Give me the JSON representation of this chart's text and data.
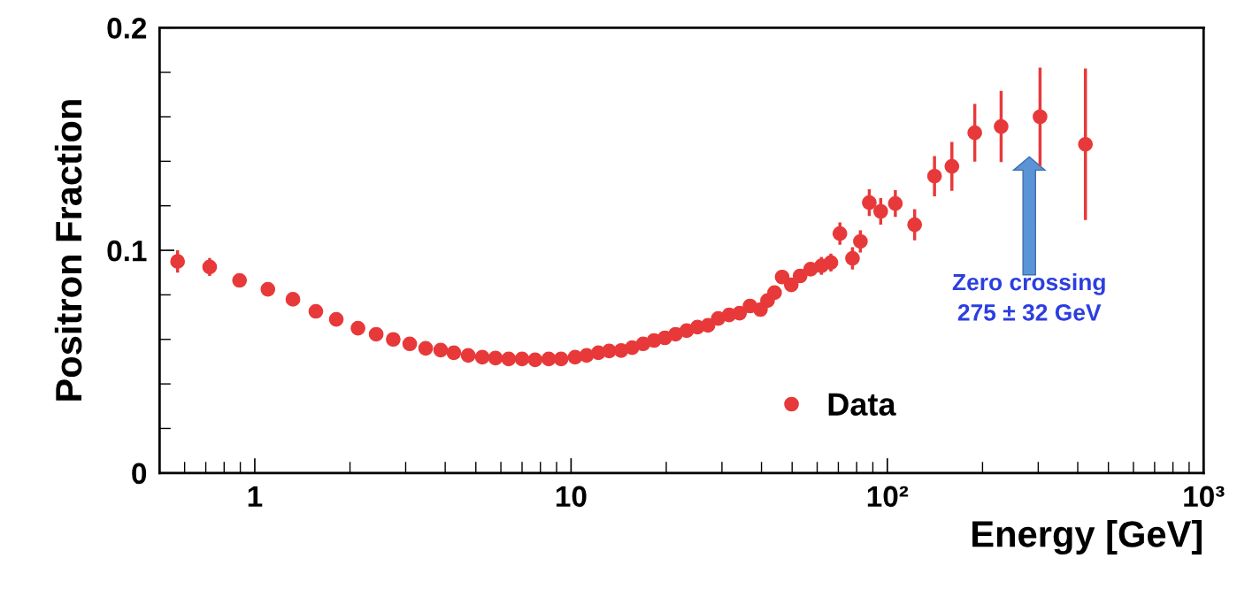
{
  "chart_data": {
    "type": "scatter",
    "xlabel": "Energy [GeV]",
    "ylabel": "Positron Fraction",
    "log": "x",
    "xlim": [
      0.5,
      1000
    ],
    "xticks": [
      1,
      10,
      {
        "value": 100,
        "label": "10²"
      },
      {
        "value": 1000,
        "label": "10³"
      }
    ],
    "ylim": [
      0,
      0.2
    ],
    "yticks": [
      0,
      0.1,
      0.2
    ],
    "grid": false,
    "legend": "bottom",
    "marker": "circle",
    "annotations": [
      "Zero crossing\n275 ± 32 GeV"
    ],
    "series": [
      {
        "name": "Data",
        "color": "#e8393a",
        "x": [
          0.57,
          0.72,
          0.895,
          1.1,
          1.32,
          1.56,
          1.81,
          2.12,
          2.42,
          2.74,
          3.09,
          3.47,
          3.87,
          4.26,
          4.73,
          5.24,
          5.77,
          6.35,
          7.0,
          7.7,
          8.5,
          9.3,
          10.3,
          11.2,
          12.2,
          13.2,
          14.4,
          15.6,
          16.9,
          18.3,
          19.8,
          21.4,
          23.2,
          25.1,
          27.1,
          29.2,
          31.6,
          34.1,
          36.8,
          39.7,
          41.8,
          44.0,
          46.5,
          49.7,
          53.0,
          57.2,
          61.9,
          66.3,
          70.8,
          77.6,
          82.2,
          87.7,
          95.3,
          106,
          122,
          141,
          160,
          189,
          229,
          304,
          423
        ],
        "values": [
          0.095,
          0.0925,
          0.0865,
          0.0825,
          0.078,
          0.0726,
          0.069,
          0.065,
          0.0623,
          0.06,
          0.058,
          0.056,
          0.0552,
          0.054,
          0.0528,
          0.052,
          0.0516,
          0.0512,
          0.0512,
          0.0508,
          0.0512,
          0.0512,
          0.052,
          0.0528,
          0.054,
          0.0548,
          0.055,
          0.0563,
          0.058,
          0.0595,
          0.0607,
          0.0623,
          0.0639,
          0.0655,
          0.0663,
          0.0694,
          0.071,
          0.0718,
          0.075,
          0.0734,
          0.0774,
          0.081,
          0.088,
          0.0845,
          0.0885,
          0.0915,
          0.093,
          0.0945,
          0.1075,
          0.0964,
          0.104,
          0.1214,
          0.1175,
          0.121,
          0.1115,
          0.1333,
          0.1377,
          0.1528,
          0.1556,
          0.16,
          0.1476
        ],
        "errors": [
          0.005,
          0.004,
          null,
          null,
          null,
          null,
          null,
          null,
          null,
          null,
          null,
          null,
          null,
          null,
          null,
          null,
          null,
          null,
          null,
          null,
          null,
          null,
          null,
          null,
          null,
          null,
          null,
          null,
          null,
          null,
          null,
          null,
          null,
          null,
          null,
          null,
          null,
          null,
          null,
          null,
          null,
          null,
          0.003,
          0.003,
          0.003,
          0.003,
          0.004,
          0.004,
          0.005,
          0.005,
          0.005,
          0.006,
          0.006,
          0.006,
          0.007,
          0.009,
          0.011,
          0.013,
          0.016,
          0.022,
          0.034
        ]
      }
    ]
  }
}
